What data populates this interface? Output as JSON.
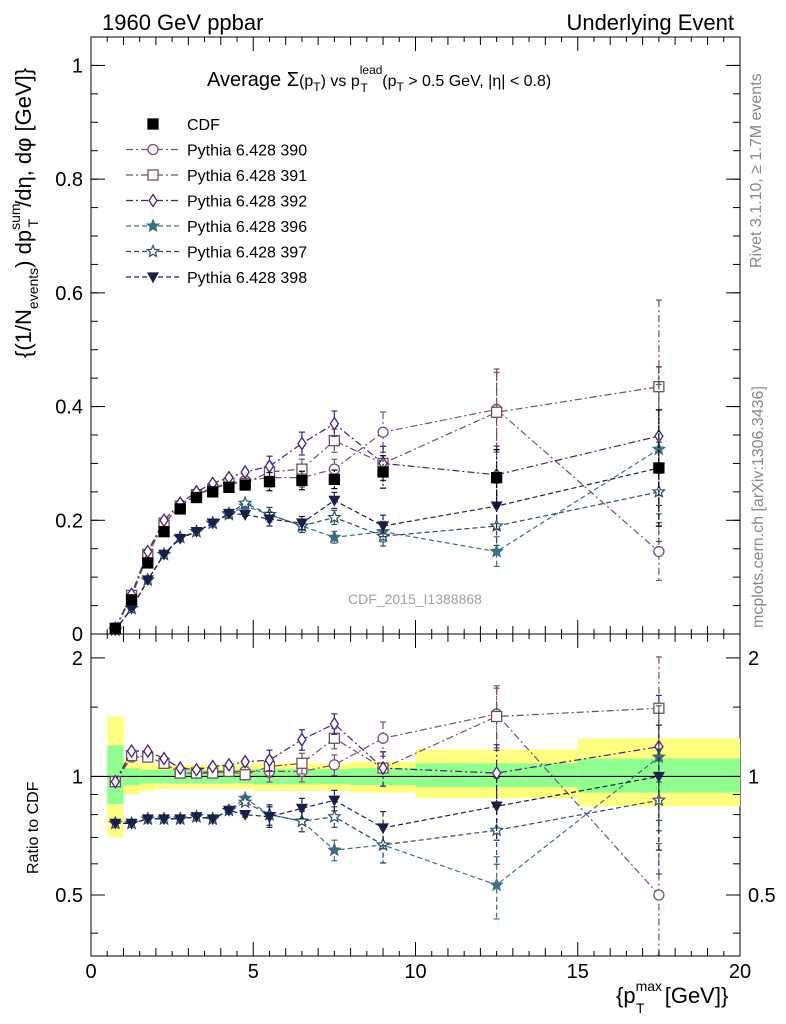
{
  "header": {
    "left": "1960 GeV ppbar",
    "right": "Underlying Event"
  },
  "side_labels": {
    "rivet": "Rivet 3.1.10, ≥ 1.7M events",
    "mcplots": "mcplots.cern.ch [arXiv:1306.3436]"
  },
  "watermark": "CDF_2015_I1388868",
  "colors": {
    "cdf": "#000000",
    "p390": "#7b4d7b",
    "p391": "#70505f",
    "p392": "#4a1f7a",
    "p396": "#3f7080",
    "p397": "#2d4d6a",
    "p398": "#1a1f4a",
    "band_yellow": "#ffff80",
    "band_green": "#90ff90"
  },
  "chart_data": [
    {
      "type": "scatter",
      "title_parts": {
        "t1": "Average ",
        "sigma": "Σ",
        "t2": "(p",
        "sub_T": "T",
        "t3": ") vs p",
        "sup_lead": "lead",
        "t4": " (p",
        "t5": " > 0.5 GeV, |η| < 0.8)"
      },
      "ylabel_parts": {
        "a": "{(1/N",
        "sub_events": "events",
        "b": ") dp",
        "sup_sum": "sum",
        "sub_T": "T",
        "c": "/dη, dφ [GeV]}"
      },
      "ylim": [
        0,
        1.05
      ],
      "yticks": [
        "0",
        "0.2",
        "0.4",
        "0.6",
        "0.8",
        "1"
      ],
      "x": [
        0.75,
        1.25,
        1.75,
        2.25,
        2.75,
        3.25,
        3.75,
        4.25,
        4.75,
        5.5,
        6.5,
        7.5,
        9.0,
        12.5,
        17.5
      ],
      "series": [
        {
          "name": "CDF",
          "key": "cdf",
          "marker": "square-filled",
          "line": "none",
          "values": [
            0.01,
            0.06,
            0.125,
            0.18,
            0.22,
            0.24,
            0.25,
            0.258,
            0.262,
            0.268,
            0.27,
            0.272,
            0.285,
            0.275,
            0.292
          ]
        },
        {
          "name": "Pythia 6.428 390",
          "key": "p390",
          "marker": "circle-open",
          "line": "dashdot",
          "values": [
            0.01,
            0.065,
            0.14,
            0.195,
            0.225,
            0.245,
            0.258,
            0.265,
            0.27,
            0.275,
            0.275,
            0.29,
            0.355,
            0.395,
            0.145
          ]
        },
        {
          "name": "Pythia 6.428 391",
          "key": "p391",
          "marker": "square-open",
          "line": "dashdot",
          "values": [
            0.01,
            0.068,
            0.14,
            0.195,
            0.225,
            0.245,
            0.255,
            0.265,
            0.265,
            0.285,
            0.29,
            0.34,
            0.3,
            0.39,
            0.435
          ]
        },
        {
          "name": "Pythia 6.428 392",
          "key": "p392",
          "marker": "diamond-open",
          "line": "dashdot",
          "values": [
            0.01,
            0.07,
            0.145,
            0.2,
            0.23,
            0.25,
            0.265,
            0.275,
            0.285,
            0.295,
            0.335,
            0.37,
            0.3,
            0.28,
            0.348
          ]
        },
        {
          "name": "Pythia 6.428 396",
          "key": "p396",
          "marker": "star-filled",
          "line": "dashed",
          "values": [
            0.007,
            0.045,
            0.095,
            0.14,
            0.17,
            0.18,
            0.195,
            0.21,
            0.225,
            0.21,
            0.19,
            0.17,
            0.18,
            0.145,
            0.325
          ]
        },
        {
          "name": "Pythia 6.428 397",
          "key": "p397",
          "marker": "star-open",
          "line": "dashed",
          "values": [
            0.007,
            0.045,
            0.095,
            0.14,
            0.17,
            0.18,
            0.195,
            0.212,
            0.23,
            0.21,
            0.19,
            0.205,
            0.172,
            0.19,
            0.25
          ]
        },
        {
          "name": "Pythia 6.428 398",
          "key": "p398",
          "marker": "triangle-down-filled",
          "line": "dashed",
          "values": [
            0.007,
            0.045,
            0.095,
            0.14,
            0.168,
            0.18,
            0.195,
            0.212,
            0.21,
            0.202,
            0.195,
            0.235,
            0.19,
            0.225,
            0.292
          ]
        }
      ],
      "legend": "top-left"
    },
    {
      "type": "scatter",
      "ylabel": "Ratio to CDF",
      "xlabel_parts": {
        "a": "{p",
        "sup_max": "max",
        "sub_T": "T",
        "b": " [GeV]}"
      },
      "xlim": [
        0,
        20
      ],
      "xticks": [
        "0",
        "5",
        "10",
        "15",
        "20"
      ],
      "ylim": [
        0.35,
        2.3
      ],
      "scale": "log",
      "yticks": [
        "0.5",
        "1",
        "2"
      ],
      "x": [
        0.75,
        1.25,
        1.75,
        2.25,
        2.75,
        3.25,
        3.75,
        4.25,
        4.75,
        5.5,
        6.5,
        7.5,
        9.0,
        12.5,
        17.5
      ],
      "bins": [
        [
          0.5,
          1.0
        ],
        [
          1.0,
          1.5
        ],
        [
          1.5,
          2.0
        ],
        [
          2.0,
          2.5
        ],
        [
          2.5,
          3.0
        ],
        [
          3.0,
          3.5
        ],
        [
          3.5,
          4.0
        ],
        [
          4.0,
          4.5
        ],
        [
          4.5,
          5.0
        ],
        [
          5.0,
          6.0
        ],
        [
          6.0,
          7.0
        ],
        [
          7.0,
          8.0
        ],
        [
          8.0,
          10.0
        ],
        [
          10.0,
          15.0
        ],
        [
          15.0,
          20.0
        ]
      ],
      "band_yellow": [
        [
          0.7,
          1.42
        ],
        [
          0.9,
          1.1
        ],
        [
          0.92,
          1.08
        ],
        [
          0.93,
          1.07
        ],
        [
          0.93,
          1.07
        ],
        [
          0.93,
          1.07
        ],
        [
          0.93,
          1.07
        ],
        [
          0.93,
          1.07
        ],
        [
          0.93,
          1.07
        ],
        [
          0.92,
          1.08
        ],
        [
          0.92,
          1.08
        ],
        [
          0.92,
          1.08
        ],
        [
          0.91,
          1.09
        ],
        [
          0.88,
          1.17
        ],
        [
          0.84,
          1.25
        ]
      ],
      "band_green": [
        [
          0.85,
          1.2
        ],
        [
          0.95,
          1.05
        ],
        [
          0.96,
          1.04
        ],
        [
          0.96,
          1.04
        ],
        [
          0.96,
          1.04
        ],
        [
          0.96,
          1.04
        ],
        [
          0.96,
          1.04
        ],
        [
          0.96,
          1.04
        ],
        [
          0.96,
          1.04
        ],
        [
          0.955,
          1.045
        ],
        [
          0.955,
          1.045
        ],
        [
          0.955,
          1.045
        ],
        [
          0.95,
          1.05
        ],
        [
          0.94,
          1.08
        ],
        [
          0.91,
          1.11
        ]
      ],
      "series": [
        {
          "key": "p390",
          "marker": "circle-open",
          "line": "dashdot",
          "values": [
            0.97,
            1.12,
            1.12,
            1.08,
            1.02,
            1.02,
            1.03,
            1.03,
            1.03,
            1.03,
            1.03,
            1.07,
            1.25,
            1.44,
            0.5
          ]
        },
        {
          "key": "p391",
          "marker": "square-open",
          "line": "dashdot",
          "values": [
            0.97,
            1.13,
            1.12,
            1.08,
            1.02,
            1.02,
            1.02,
            1.03,
            1.01,
            1.06,
            1.08,
            1.25,
            1.05,
            1.42,
            1.49
          ]
        },
        {
          "key": "p392",
          "marker": "diamond-open",
          "line": "dashdot",
          "values": [
            0.97,
            1.16,
            1.16,
            1.11,
            1.05,
            1.04,
            1.06,
            1.07,
            1.09,
            1.1,
            1.24,
            1.36,
            1.05,
            1.02,
            1.19
          ]
        },
        {
          "key": "p396",
          "marker": "star-filled",
          "line": "dashed",
          "values": [
            0.76,
            0.76,
            0.78,
            0.78,
            0.78,
            0.79,
            0.78,
            0.82,
            0.88,
            0.8,
            0.77,
            0.65,
            0.67,
            0.53,
            1.12
          ]
        },
        {
          "key": "p397",
          "marker": "star-open",
          "line": "dashed",
          "values": [
            0.76,
            0.76,
            0.78,
            0.78,
            0.78,
            0.79,
            0.78,
            0.82,
            0.86,
            0.8,
            0.77,
            0.79,
            0.67,
            0.73,
            0.87
          ]
        },
        {
          "key": "p398",
          "marker": "triangle-down-filled",
          "line": "dashed",
          "values": [
            0.76,
            0.76,
            0.78,
            0.78,
            0.78,
            0.79,
            0.78,
            0.82,
            0.8,
            0.79,
            0.83,
            0.87,
            0.74,
            0.84,
            1.0
          ]
        }
      ]
    }
  ]
}
